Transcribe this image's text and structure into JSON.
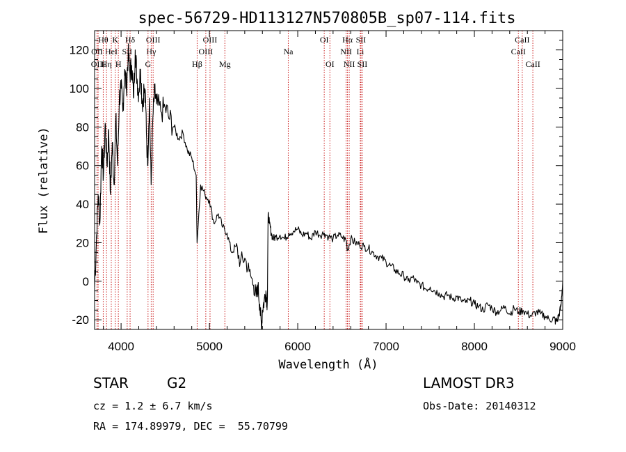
{
  "chart_data": {
    "type": "line",
    "title": "spec-56729-HD113127N570805B_sp07-114.fits",
    "xlabel": "Wavelength (Å)",
    "ylabel": "Flux (relative)",
    "xlim": [
      3700,
      9000
    ],
    "ylim": [
      -25,
      130
    ],
    "xticks": [
      4000,
      5000,
      6000,
      7000,
      8000,
      9000
    ],
    "yticks": [
      -20,
      0,
      20,
      40,
      60,
      80,
      100,
      120
    ],
    "series": [
      {
        "name": "spectrum",
        "x": [
          3700,
          3720,
          3740,
          3760,
          3780,
          3800,
          3820,
          3840,
          3860,
          3880,
          3900,
          3920,
          3940,
          3960,
          3980,
          4000,
          4020,
          4040,
          4060,
          4080,
          4100,
          4120,
          4140,
          4160,
          4180,
          4200,
          4220,
          4240,
          4260,
          4280,
          4300,
          4320,
          4340,
          4360,
          4380,
          4400,
          4450,
          4500,
          4550,
          4600,
          4650,
          4700,
          4750,
          4800,
          4850,
          4860,
          4900,
          4950,
          5000,
          5050,
          5100,
          5150,
          5200,
          5250,
          5300,
          5350,
          5400,
          5450,
          5500,
          5530,
          5550,
          5570,
          5590,
          5600,
          5620,
          5640,
          5655,
          5665,
          5680,
          5700,
          5720,
          5750,
          5800,
          5850,
          5900,
          5950,
          6000,
          6050,
          6100,
          6150,
          6200,
          6250,
          6300,
          6350,
          6400,
          6450,
          6500,
          6550,
          6563,
          6600,
          6650,
          6700,
          6750,
          6800,
          6850,
          6900,
          6950,
          7000,
          7050,
          7100,
          7150,
          7200,
          7250,
          7300,
          7350,
          7400,
          7450,
          7500,
          7550,
          7600,
          7650,
          7700,
          7750,
          7800,
          7850,
          7900,
          7950,
          8000,
          8050,
          8100,
          8150,
          8200,
          8250,
          8300,
          8350,
          8400,
          8450,
          8500,
          8550,
          8600,
          8650,
          8700,
          8750,
          8800,
          8850,
          8900,
          8920,
          8940,
          8960,
          8980,
          9000
        ],
        "values": [
          -3,
          20,
          45,
          30,
          70,
          55,
          82,
          60,
          78,
          45,
          72,
          50,
          85,
          60,
          95,
          100,
          88,
          110,
          100,
          118,
          108,
          112,
          95,
          120,
          105,
          98,
          110,
          92,
          100,
          90,
          60,
          95,
          50,
          85,
          98,
          92,
          88,
          90,
          84,
          80,
          74,
          77,
          68,
          64,
          55,
          20,
          50,
          45,
          42,
          30,
          35,
          28,
          25,
          15,
          18,
          10,
          12,
          5,
          -2,
          -8,
          -3,
          -12,
          -25,
          -15,
          -10,
          -5,
          -12,
          35,
          30,
          25,
          22,
          23,
          24,
          22,
          25,
          26,
          27,
          24,
          25,
          22,
          26,
          24,
          25,
          23,
          22,
          24,
          23,
          21,
          16,
          22,
          20,
          19,
          18,
          17,
          15,
          13,
          12,
          10,
          8,
          6,
          4,
          3,
          0,
          2,
          -1,
          -2,
          -4,
          -3,
          -5,
          -6,
          -8,
          -7,
          -9,
          -8,
          -10,
          -11,
          -10,
          -12,
          -13,
          -15,
          -12,
          -14,
          -16,
          -15,
          -13,
          -17,
          -14,
          -16,
          -15,
          -17,
          -18,
          -16,
          -17,
          -18,
          -20,
          -19,
          -21,
          -20,
          -17,
          -13,
          0
        ]
      }
    ],
    "line_markers": [
      {
        "label": "Hθ",
        "x": 3798,
        "row": 1
      },
      {
        "label": "OII",
        "x": 3727,
        "row": 2
      },
      {
        "label": "OIII",
        "x": 3740,
        "row": 3
      },
      {
        "label": "K",
        "x": 3934,
        "row": 1
      },
      {
        "label": "HeI",
        "x": 3889,
        "row": 2
      },
      {
        "label": "Hη",
        "x": 3835,
        "row": 3
      },
      {
        "label": "SII",
        "x": 4069,
        "row": 2
      },
      {
        "label": "H",
        "x": 3969,
        "row": 3
      },
      {
        "label": "Hδ",
        "x": 4102,
        "row": 1
      },
      {
        "label": "OIII",
        "x": 4363,
        "row": 1
      },
      {
        "label": "Hγ",
        "x": 4341,
        "row": 2
      },
      {
        "label": "G",
        "x": 4305,
        "row": 3
      },
      {
        "label": "OIII",
        "x": 5007,
        "row": 1
      },
      {
        "label": "OIII",
        "x": 4959,
        "row": 2
      },
      {
        "label": "Hβ",
        "x": 4861,
        "row": 3
      },
      {
        "label": "Mg",
        "x": 5175,
        "row": 3
      },
      {
        "label": "Na",
        "x": 5893,
        "row": 2
      },
      {
        "label": "OI",
        "x": 6300,
        "row": 1
      },
      {
        "label": "OI",
        "x": 6364,
        "row": 3
      },
      {
        "label": "Hα",
        "x": 6563,
        "row": 1
      },
      {
        "label": "SII",
        "x": 6716,
        "row": 1
      },
      {
        "label": "NII",
        "x": 6548,
        "row": 2
      },
      {
        "label": "Li",
        "x": 6708,
        "row": 2
      },
      {
        "label": "NII",
        "x": 6583,
        "row": 3
      },
      {
        "label": "SII",
        "x": 6731,
        "row": 3
      },
      {
        "label": "CaII",
        "x": 8542,
        "row": 1
      },
      {
        "label": "CaII",
        "x": 8498,
        "row": 2
      },
      {
        "label": "CaII",
        "x": 8662,
        "row": 3
      }
    ]
  },
  "info": {
    "object_class": "STAR",
    "subclass": "G2",
    "survey": "LAMOST DR3",
    "cz": "cz = 1.2 ± 6.7 km/s",
    "obs_date": "Obs-Date: 20140312",
    "coords": "RA = 174.89979, DEC =  55.70799"
  },
  "colors": {
    "axes": "#000000",
    "spectrum": "#000000",
    "markers": "#cc2222",
    "background": "#ffffff"
  }
}
